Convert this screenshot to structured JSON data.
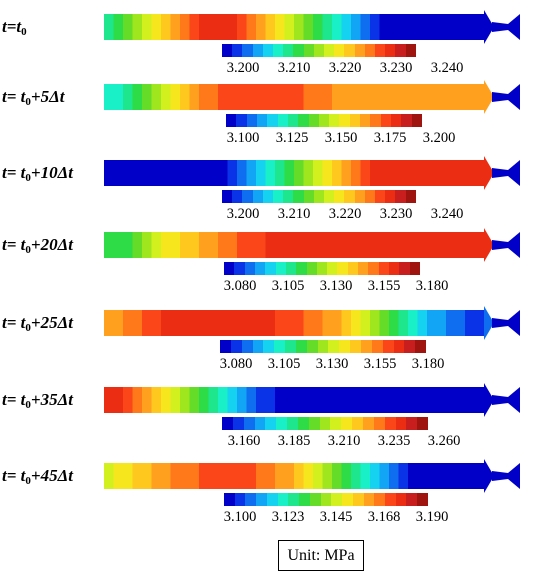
{
  "colors": {
    "jet_scale": [
      "#0000c8",
      "#0a32e6",
      "#0f6ef0",
      "#12a5f5",
      "#14d2f0",
      "#19f0c8",
      "#1ee68c",
      "#2ddc46",
      "#64dc28",
      "#a0e61e",
      "#d2f01e",
      "#f5e61e",
      "#ffc81e",
      "#ffa01e",
      "#ff7819",
      "#fa4619",
      "#eb2d14",
      "#c81e1e",
      "#a0140f"
    ],
    "text": "#000000",
    "background": "#ffffff"
  },
  "rows": [
    {
      "label_prefix": "t",
      "label_mid": "=t",
      "label_sub": "0",
      "label_suffix": "",
      "fill": [
        "#1ee68c",
        "#2ddc46",
        "#64dc28",
        "#a0e61e",
        "#d2f01e",
        "#f5e61e",
        "#ffc81e",
        "#ffa01e",
        "#ff7819",
        "#fa4619",
        "#eb2d14",
        "#eb2d14",
        "#eb2d14",
        "#eb2d14",
        "#fa4619",
        "#ff7819",
        "#ffa01e",
        "#ffc81e",
        "#f5e61e",
        "#d2f01e",
        "#a0e61e",
        "#64dc28",
        "#2ddc46",
        "#1ee68c",
        "#19f0c8",
        "#14d2f0",
        "#12a5f5",
        "#0f6ef0",
        "#0a32e6",
        "#0000c8",
        "#0000c8",
        "#0000c8",
        "#0000c8",
        "#0000c8",
        "#0000c8",
        "#0000c8",
        "#0000c8",
        "#0000c8",
        "#0000c8",
        "#0000c8"
      ],
      "tip_color": "#0000c8",
      "ticks": [
        "3.200",
        "3.210",
        "3.220",
        "3.230",
        "3.240"
      ]
    },
    {
      "label_prefix": "t",
      "label_mid": "= t",
      "label_sub": "0",
      "label_suffix": "+5Δt",
      "fill": [
        "#19f0c8",
        "#19f0c8",
        "#1ee68c",
        "#2ddc46",
        "#64dc28",
        "#a0e61e",
        "#d2f01e",
        "#f5e61e",
        "#ffc81e",
        "#ffa01e",
        "#ff7819",
        "#ff7819",
        "#fa4619",
        "#fa4619",
        "#fa4619",
        "#fa4619",
        "#fa4619",
        "#fa4619",
        "#fa4619",
        "#fa4619",
        "#fa4619",
        "#ff7819",
        "#ff7819",
        "#ff7819",
        "#ffa01e",
        "#ffa01e",
        "#ffa01e",
        "#ffa01e",
        "#ffa01e",
        "#ffa01e",
        "#ffa01e",
        "#ffa01e",
        "#ffa01e",
        "#ffa01e",
        "#ffa01e",
        "#ffa01e",
        "#ffa01e",
        "#ffa01e",
        "#ffa01e",
        "#ffa01e"
      ],
      "tip_color": "#ffa01e",
      "ticks": [
        "3.100",
        "3.125",
        "3.150",
        "3.175",
        "3.200"
      ]
    },
    {
      "label_prefix": "t",
      "label_mid": "= t",
      "label_sub": "0",
      "label_suffix": "+10Δt",
      "fill": [
        "#0000c8",
        "#0000c8",
        "#0000c8",
        "#0000c8",
        "#0000c8",
        "#0000c8",
        "#0000c8",
        "#0000c8",
        "#0000c8",
        "#0000c8",
        "#0000c8",
        "#0000c8",
        "#0000c8",
        "#0a32e6",
        "#0f6ef0",
        "#12a5f5",
        "#14d2f0",
        "#19f0c8",
        "#1ee68c",
        "#2ddc46",
        "#64dc28",
        "#a0e61e",
        "#d2f01e",
        "#f5e61e",
        "#ffc81e",
        "#ffa01e",
        "#ff7819",
        "#fa4619",
        "#eb2d14",
        "#eb2d14",
        "#eb2d14",
        "#eb2d14",
        "#eb2d14",
        "#eb2d14",
        "#eb2d14",
        "#eb2d14",
        "#eb2d14",
        "#eb2d14",
        "#eb2d14",
        "#eb2d14"
      ],
      "tip_color": "#eb2d14",
      "ticks": [
        "3.200",
        "3.210",
        "3.220",
        "3.230",
        "3.240"
      ]
    },
    {
      "label_prefix": "t",
      "label_mid": "= t",
      "label_sub": "0",
      "label_suffix": "+20Δt",
      "fill": [
        "#2ddc46",
        "#2ddc46",
        "#2ddc46",
        "#64dc28",
        "#a0e61e",
        "#d2f01e",
        "#f5e61e",
        "#f5e61e",
        "#ffc81e",
        "#ffc81e",
        "#ffa01e",
        "#ffa01e",
        "#ff7819",
        "#ff7819",
        "#fa4619",
        "#fa4619",
        "#fa4619",
        "#eb2d14",
        "#eb2d14",
        "#eb2d14",
        "#eb2d14",
        "#eb2d14",
        "#eb2d14",
        "#eb2d14",
        "#eb2d14",
        "#eb2d14",
        "#eb2d14",
        "#eb2d14",
        "#eb2d14",
        "#eb2d14",
        "#eb2d14",
        "#eb2d14",
        "#eb2d14",
        "#eb2d14",
        "#eb2d14",
        "#eb2d14",
        "#eb2d14",
        "#eb2d14",
        "#eb2d14",
        "#eb2d14"
      ],
      "tip_color": "#eb2d14",
      "ticks": [
        "3.080",
        "3.105",
        "3.130",
        "3.155",
        "3.180"
      ]
    },
    {
      "label_prefix": "t",
      "label_mid": "= t",
      "label_sub": "0",
      "label_suffix": "+25Δt",
      "fill": [
        "#ffa01e",
        "#ffa01e",
        "#ff7819",
        "#ff7819",
        "#fa4619",
        "#fa4619",
        "#eb2d14",
        "#eb2d14",
        "#eb2d14",
        "#eb2d14",
        "#eb2d14",
        "#eb2d14",
        "#eb2d14",
        "#eb2d14",
        "#eb2d14",
        "#eb2d14",
        "#eb2d14",
        "#eb2d14",
        "#fa4619",
        "#fa4619",
        "#fa4619",
        "#ff7819",
        "#ff7819",
        "#ffa01e",
        "#ffa01e",
        "#ffc81e",
        "#f5e61e",
        "#d2f01e",
        "#a0e61e",
        "#64dc28",
        "#2ddc46",
        "#1ee68c",
        "#19f0c8",
        "#14d2f0",
        "#12a5f5",
        "#12a5f5",
        "#0f6ef0",
        "#0f6ef0",
        "#0a32e6",
        "#0a32e6"
      ],
      "tip_color": "#0f6ef0",
      "ticks": [
        "3.080",
        "3.105",
        "3.130",
        "3.155",
        "3.180"
      ]
    },
    {
      "label_prefix": "t",
      "label_mid": "= t",
      "label_sub": "0",
      "label_suffix": "+35Δt",
      "fill": [
        "#eb2d14",
        "#eb2d14",
        "#fa4619",
        "#ff7819",
        "#ffa01e",
        "#ffc81e",
        "#f5e61e",
        "#d2f01e",
        "#a0e61e",
        "#64dc28",
        "#2ddc46",
        "#1ee68c",
        "#19f0c8",
        "#14d2f0",
        "#12a5f5",
        "#0f6ef0",
        "#0a32e6",
        "#0a32e6",
        "#0000c8",
        "#0000c8",
        "#0000c8",
        "#0000c8",
        "#0000c8",
        "#0000c8",
        "#0000c8",
        "#0000c8",
        "#0000c8",
        "#0000c8",
        "#0000c8",
        "#0000c8",
        "#0000c8",
        "#0000c8",
        "#0000c8",
        "#0000c8",
        "#0000c8",
        "#0000c8",
        "#0000c8",
        "#0000c8",
        "#0000c8",
        "#0000c8"
      ],
      "tip_color": "#0000c8",
      "ticks": [
        "3.160",
        "3.185",
        "3.210",
        "3.235",
        "3.260"
      ]
    },
    {
      "label_prefix": "t",
      "label_mid": "= t",
      "label_sub": "0",
      "label_suffix": "+45Δt",
      "fill": [
        "#d2f01e",
        "#f5e61e",
        "#f5e61e",
        "#ffc81e",
        "#ffc81e",
        "#ffa01e",
        "#ffa01e",
        "#ff7819",
        "#ff7819",
        "#ff7819",
        "#fa4619",
        "#fa4619",
        "#fa4619",
        "#fa4619",
        "#fa4619",
        "#fa4619",
        "#ff7819",
        "#ff7819",
        "#ffa01e",
        "#ffa01e",
        "#ffc81e",
        "#f5e61e",
        "#d2f01e",
        "#a0e61e",
        "#64dc28",
        "#2ddc46",
        "#1ee68c",
        "#19f0c8",
        "#14d2f0",
        "#12a5f5",
        "#0f6ef0",
        "#0a32e6",
        "#0000c8",
        "#0000c8",
        "#0000c8",
        "#0000c8",
        "#0000c8",
        "#0000c8",
        "#0000c8",
        "#0000c8"
      ],
      "tip_color": "#0000c8",
      "ticks": [
        "3.100",
        "3.123",
        "3.145",
        "3.168",
        "3.190"
      ]
    }
  ],
  "unit_label": "Unit: MPa"
}
